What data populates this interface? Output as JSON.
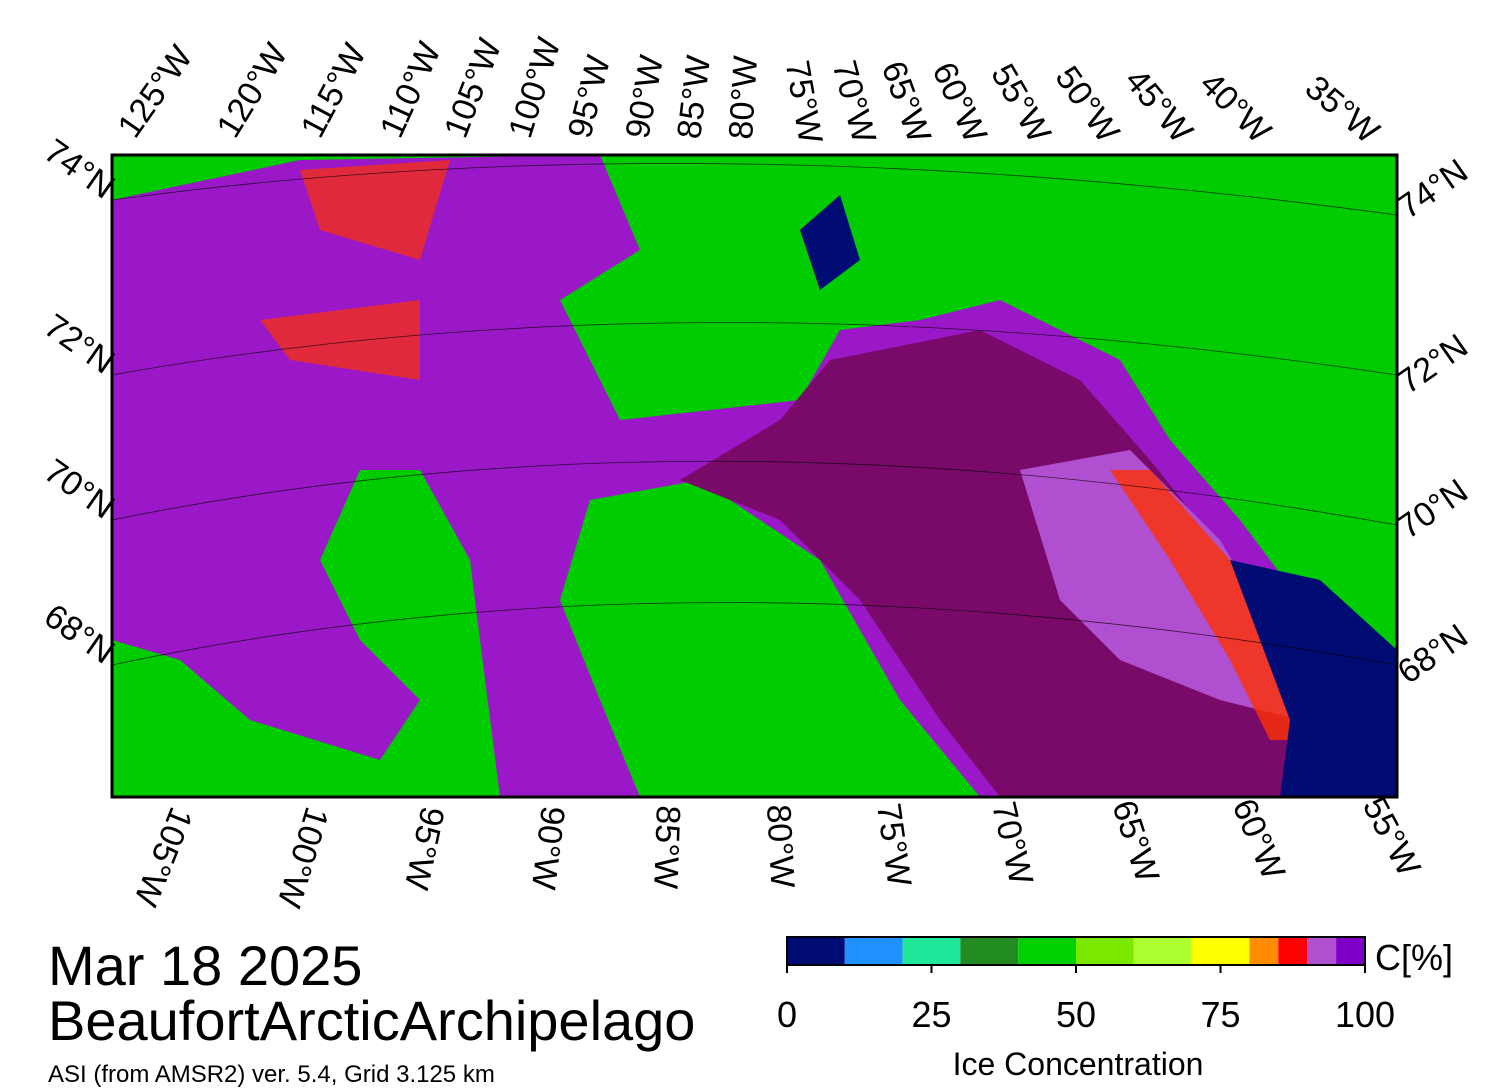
{
  "header": {
    "date": "Mar 18 2025",
    "region": "BeaufortArcticArchipelago",
    "source": "ASI (from AMSR2) ver. 5.4,  Grid 3.125 km"
  },
  "map": {
    "top_longitude_labels": [
      "125°W",
      "120°W",
      "115°W",
      "110°W",
      "105°W",
      "100°W",
      "95°W",
      "90°W",
      "85°W",
      "80°W",
      "75°W",
      "70°W",
      "65°W",
      "60°W",
      "55°W",
      "50°W",
      "45°W",
      "40°W",
      "35°W"
    ],
    "bottom_longitude_labels": [
      "105°W",
      "100°W",
      "95°W",
      "90°W",
      "85°W",
      "80°W",
      "75°W",
      "70°W",
      "65°W",
      "60°W",
      "55°W"
    ],
    "left_latitude_labels": [
      "74°N",
      "72°N",
      "70°N",
      "68°N"
    ],
    "right_latitude_labels": [
      "74°N",
      "72°N",
      "70°N",
      "68°N"
    ]
  },
  "colorbar": {
    "title": "Ice Concentration",
    "unit_label": "C[%]",
    "bins": [
      0,
      10,
      20,
      30,
      40,
      50,
      60,
      70,
      80,
      85,
      90,
      95,
      100
    ],
    "colors": [
      "#000b73",
      "#1e90ff",
      "#20e89a",
      "#228b22",
      "#00d000",
      "#7be800",
      "#adff2f",
      "#ffff00",
      "#ff8c00",
      "#ff0000",
      "#b050d0",
      "#8000c8"
    ],
    "lim": [
      0,
      100
    ],
    "ticks": [
      0,
      25,
      50,
      75,
      100
    ]
  }
}
